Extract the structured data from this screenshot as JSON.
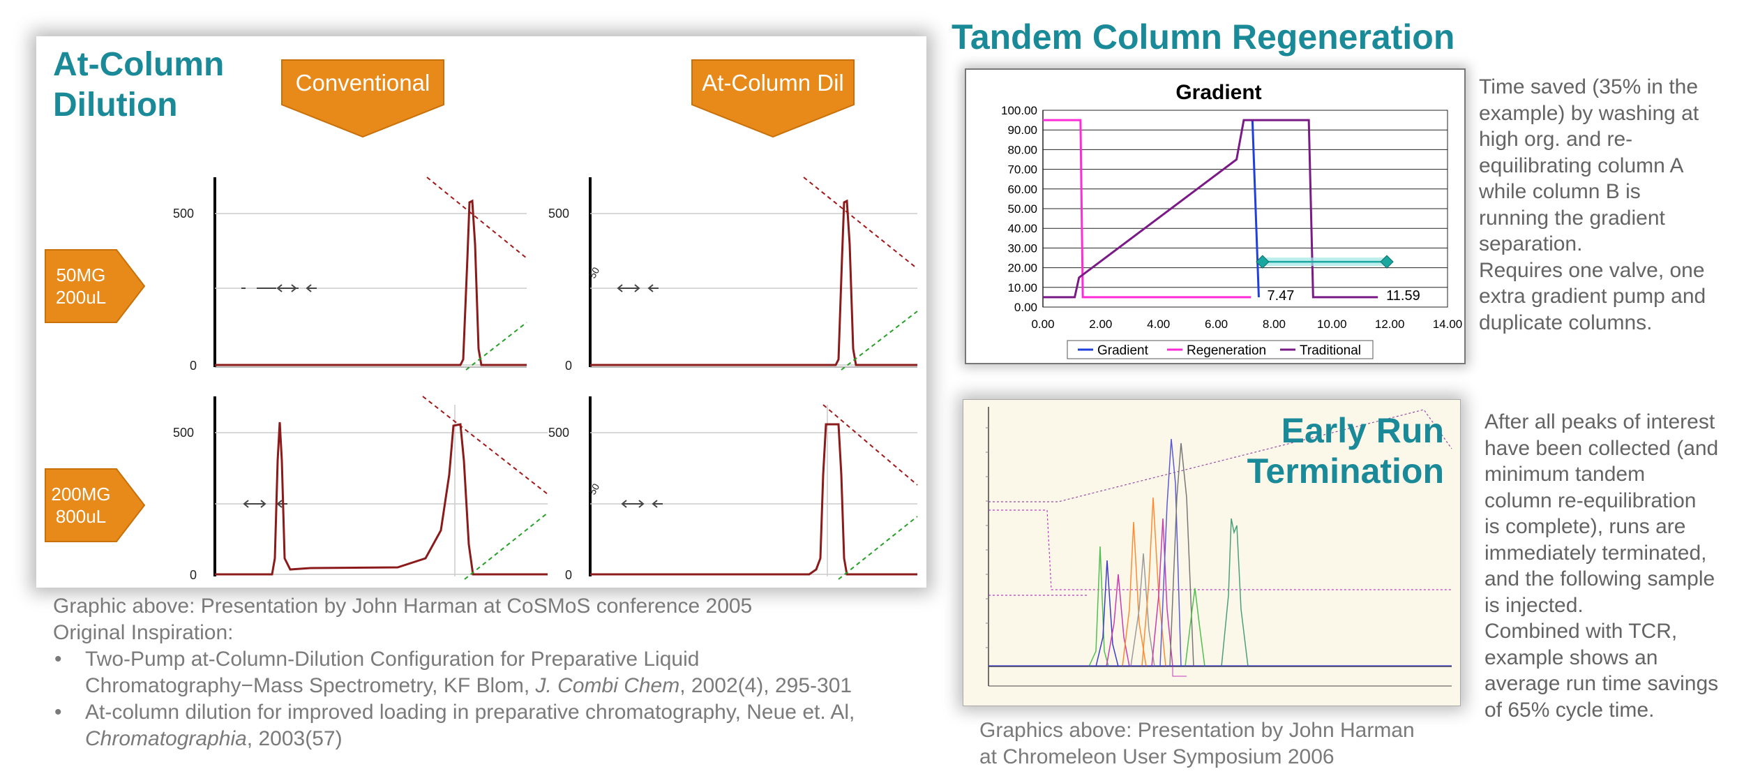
{
  "left": {
    "title_line1": "At-Column",
    "title_line2": "Dilution",
    "header_conventional": "Conventional",
    "header_atcolumn": "At-Column Dil",
    "row1_label_line1": "50MG",
    "row1_label_line2": "200uL",
    "row2_label_line1": "200MG",
    "row2_label_line2": "800uL",
    "tick_500": "500",
    "tick_0": "0",
    "tick_50": "50",
    "caption": "Graphic above: Presentation by John Harman at CoSMoS conference 2005",
    "inspiration": "Original Inspiration:",
    "ref1_a": "Two-Pump at-Column-Dilution Configuration for Preparative Liquid",
    "ref1_b": "Chromatography−Mass Spectrometry, KF Blom, ",
    "ref1_journal": "J. Combi Chem",
    "ref1_c": ", 2002(4), 295-301",
    "ref2_a": "At-column dilution for improved loading in preparative chromatography, Neue et. Al,",
    "ref2_journal": "Chromatographia",
    "ref2_c": ", 2003(57)"
  },
  "tcr": {
    "title": "Tandem Column Regeneration",
    "side_text": [
      "Time saved (35% in the",
      "example) by washing at",
      "high org. and re-",
      "equilibrating column A",
      "while column B is",
      "running the gradient",
      "separation.",
      "Requires one valve, one",
      "extra gradient pump and",
      "duplicate columns."
    ]
  },
  "ert": {
    "title_line1": "Early Run",
    "title_line2": "Termination",
    "side_text": [
      "After all peaks of interest",
      "have been collected (and",
      "minimum tandem",
      "column re-equilibration",
      "is complete), runs are",
      "immediately terminated,",
      "and the following sample",
      "is injected.",
      "Combined with TCR,",
      "example shows an",
      "average run time savings",
      "of 65% cycle time."
    ],
    "caption_line1": "Graphics above: Presentation by John Harman",
    "caption_line2": "at Chromeleon User Symposium 2006"
  },
  "chart_data": {
    "type": "line",
    "title": "Gradient",
    "xlim": [
      0,
      14
    ],
    "ylim": [
      0,
      100
    ],
    "x_ticks": [
      "0.00",
      "2.00",
      "4.00",
      "6.00",
      "8.00",
      "10.00",
      "12.00",
      "14.00"
    ],
    "y_ticks": [
      "0.00",
      "10.00",
      "20.00",
      "30.00",
      "40.00",
      "50.00",
      "60.00",
      "70.00",
      "80.00",
      "90.00",
      "100.00"
    ],
    "grid": true,
    "legend_position": "bottom",
    "series": [
      {
        "name": "Gradient",
        "color": "#1f3fe0",
        "x": [
          7.25,
          7.47
        ],
        "y": [
          95,
          5
        ]
      },
      {
        "name": "Regeneration",
        "color": "#ff2bd6",
        "x": [
          0.0,
          1.3,
          1.38,
          7.2
        ],
        "y": [
          95,
          95,
          5,
          5
        ]
      },
      {
        "name": "Traditional",
        "color": "#7a1a86",
        "x": [
          0.0,
          1.1,
          1.25,
          6.7,
          6.95,
          9.2,
          9.35,
          11.59
        ],
        "y": [
          5,
          5,
          15,
          75,
          95,
          95,
          5,
          5
        ]
      }
    ],
    "annotations": [
      {
        "text": "7.47",
        "x": 7.47,
        "y": 5
      },
      {
        "text": "11.59",
        "x": 11.59,
        "y": 5
      }
    ],
    "time_saved_marker": {
      "x_start": 7.6,
      "x_end": 11.9,
      "y": 23,
      "color": "#1aa7a0"
    }
  },
  "colors": {
    "teal": "#1a8a99",
    "orange": "#e88a1a",
    "chrom_trace": "#8b1a1a"
  }
}
